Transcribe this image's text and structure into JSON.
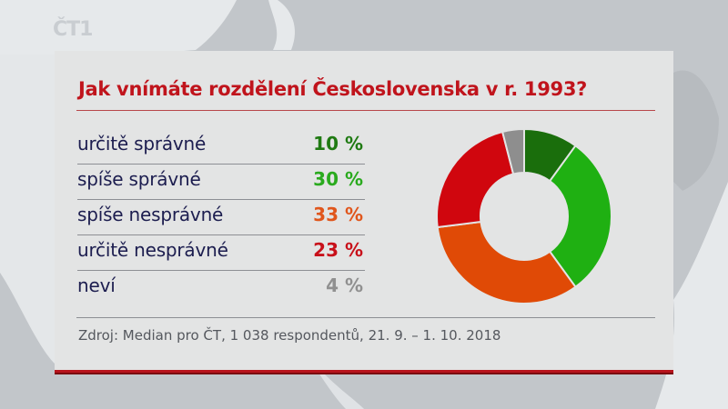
{
  "broadcast": {
    "logo_text": "ČT1",
    "logo_icon": "ct1-logo-icon"
  },
  "panel": {
    "title": "Jak vnímáte rozdělení Československa v r. 1993?",
    "source": "Zdroj: Median pro ČT, 1 038 respondentů, 21. 9. – 1. 10. 2018",
    "colors": {
      "title": "#c0141c",
      "labels": "#1c1d4f",
      "bottom_border": "#b8141c"
    }
  },
  "rows": [
    {
      "label": "určitě správné",
      "value": "10 %",
      "color": "#1f7a12"
    },
    {
      "label": "spíše správné",
      "value": "30 %",
      "color": "#2aaa1e"
    },
    {
      "label": "spíše nesprávné",
      "value": "33 %",
      "color": "#e0561c"
    },
    {
      "label": "určitě nesprávné",
      "value": "23 %",
      "color": "#c8101a"
    },
    {
      "label": "neví",
      "value": "4 %",
      "color": "#909090"
    }
  ],
  "chart_data": {
    "type": "pie",
    "variant": "donut",
    "title": "Jak vnímáte rozdělení Československa v r. 1993?",
    "categories": [
      "určitě správné",
      "spíše správné",
      "spíše nesprávné",
      "určitě nesprávné",
      "neví"
    ],
    "values": [
      10,
      30,
      33,
      23,
      4
    ],
    "unit": "%",
    "colors": [
      "#1a6e0c",
      "#1fb012",
      "#e04a06",
      "#d0060e",
      "#8e8e8e"
    ],
    "start_angle_deg": 0,
    "direction": "clockwise",
    "legend_position": "left (as table)",
    "source": "Zdroj: Median pro ČT, 1 038 respondentů, 21. 9. – 1. 10. 2018"
  }
}
